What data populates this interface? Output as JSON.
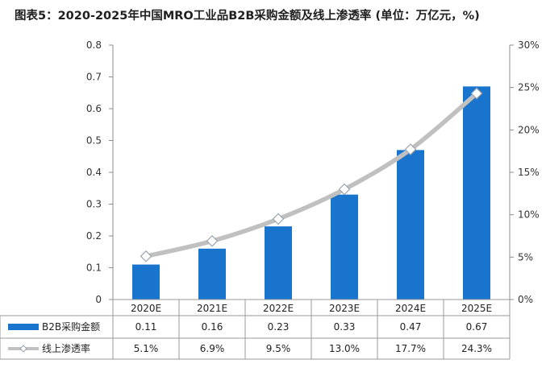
{
  "chart_data": {
    "type": "bar",
    "title": "图表5：2020-2025年中国MRO工业品B2B采购金额及线上渗透率 (单位：万亿元，%)",
    "categories": [
      "2020E",
      "2021E",
      "2022E",
      "2023E",
      "2024E",
      "2025E"
    ],
    "series": [
      {
        "name": "B2B采购金额",
        "kind": "bar",
        "axis": "left",
        "color": "#1874cd",
        "values": [
          0.11,
          0.16,
          0.23,
          0.33,
          0.47,
          0.67
        ],
        "table_labels": [
          "0.11",
          "0.16",
          "0.23",
          "0.33",
          "0.47",
          "0.67"
        ]
      },
      {
        "name": "线上渗透率",
        "kind": "line",
        "axis": "right",
        "color": "#c0c0c0",
        "values": [
          5.1,
          6.9,
          9.5,
          13.0,
          17.7,
          24.3
        ],
        "table_labels": [
          "5.1%",
          "6.9%",
          "9.5%",
          "13.0%",
          "17.7%",
          "24.3%"
        ]
      }
    ],
    "y_left": {
      "lim": [
        0,
        0.8
      ],
      "ticks": [
        "0",
        "0.1",
        "0.2",
        "0.3",
        "0.4",
        "0.5",
        "0.6",
        "0.7",
        "0.8"
      ]
    },
    "y_right": {
      "lim": [
        0,
        30
      ],
      "ticks": [
        "0%",
        "5%",
        "10%",
        "15%",
        "20%",
        "25%",
        "30%"
      ]
    },
    "grid": false,
    "legend": "data-table"
  }
}
